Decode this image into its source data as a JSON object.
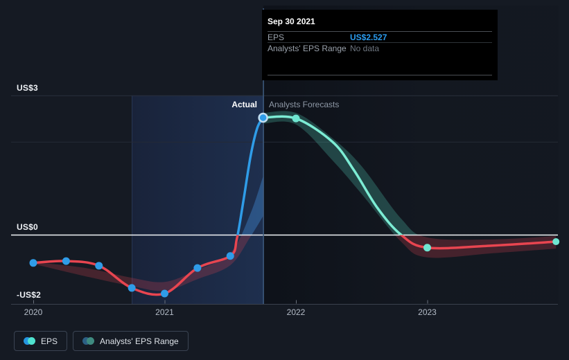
{
  "colors": {
    "page_bg": "#151a23",
    "eps_blue": "#2f9ce8",
    "eps_red": "#e84550",
    "forecast_teal": "#7cecd4",
    "dot_blue": "#2f9ce8",
    "dot_teal": "#6fe6d1",
    "peak_ring": "#c3def2",
    "zero_line": "#f2f5f8",
    "gridline": "#2a303c",
    "gridline_minor": "#242a36",
    "axis_line": "#3a414d",
    "tick": "#6a717d",
    "divider": "#3e5c80",
    "band_bg_left": "#19233a",
    "band_bg_right": "#1e2f4e",
    "past_band_below": "rgba(214,66,80,0.26)",
    "past_band_above": "rgba(64,140,215,0.40)",
    "forecast_band_above": "rgba(92,224,201,0.24)",
    "forecast_band_below": "rgba(214,66,80,0.26)"
  },
  "tooltip": {
    "title": "Sep 30 2021",
    "rows": [
      {
        "label": "EPS",
        "value": "US$2.527"
      },
      {
        "label": "Analysts' EPS Range",
        "value": "No data"
      }
    ]
  },
  "region_labels": {
    "actual": "Actual",
    "forecast": "Analysts Forecasts"
  },
  "legend": [
    {
      "label": "EPS",
      "dot1": "#2596e0",
      "dot2": "#4fe3cf"
    },
    {
      "label": "Analysts' EPS Range",
      "dot1": "#2c5f84",
      "dot2": "#3f8b80"
    }
  ],
  "chart_data": {
    "type": "line",
    "title": "EPS actual vs analysts forecasts",
    "unit": "US$ (EPS)",
    "x_axis": {
      "tick_years": [
        2020,
        2021,
        2022,
        2023
      ],
      "labels": [
        "2020",
        "2021",
        "2022",
        "2023"
      ],
      "range": [
        2019.83,
        2024.0
      ]
    },
    "y_axis": {
      "labels": [
        {
          "text": "US$3",
          "value": 3
        },
        {
          "text": "US$0",
          "value": 0
        },
        {
          "text": "-US$2",
          "value": -2
        }
      ],
      "gridline_values": [
        3,
        2
      ],
      "zero_value": 0
    },
    "highlight_region": {
      "from": 2020.75,
      "to": 2021.75
    },
    "divider_x": 2021.75,
    "hovered_point": {
      "x": 2021.75,
      "value": 2.527
    },
    "actual": {
      "name": "EPS",
      "points": [
        [
          2020.0,
          -0.61
        ],
        [
          2020.25,
          -0.57
        ],
        [
          2020.5,
          -0.67
        ],
        [
          2020.75,
          -1.15
        ],
        [
          2021.0,
          -1.27
        ],
        [
          2021.25,
          -0.72
        ],
        [
          2021.5,
          -0.46
        ],
        [
          2021.75,
          2.527
        ]
      ],
      "shape": [
        [
          2020.0,
          -0.61
        ],
        [
          2020.25,
          -0.57
        ],
        [
          2020.5,
          -0.67
        ],
        [
          2020.75,
          -1.15
        ],
        [
          2021.0,
          -1.27
        ],
        [
          2021.25,
          -0.72
        ],
        [
          2021.5,
          -0.46
        ],
        [
          2021.55,
          -0.09
        ],
        [
          2021.6,
          0.73
        ],
        [
          2021.655,
          1.7
        ],
        [
          2021.705,
          2.3
        ],
        [
          2021.75,
          2.527
        ]
      ]
    },
    "forecast": {
      "name": "EPS forecast",
      "points": [
        [
          2022.0,
          2.51
        ],
        [
          2023.0,
          -0.28
        ],
        [
          2023.98,
          -0.15
        ]
      ],
      "shape": [
        [
          2021.75,
          2.527
        ],
        [
          2022.0,
          2.51
        ],
        [
          2022.28,
          2.0
        ],
        [
          2022.44,
          1.4
        ],
        [
          2022.62,
          0.58
        ],
        [
          2022.8,
          0.0
        ],
        [
          2023.0,
          -0.28
        ],
        [
          2023.5,
          -0.235
        ],
        [
          2023.98,
          -0.15
        ]
      ]
    },
    "past_range_band": [
      [
        2020.0,
        -0.63,
        -0.59
      ],
      [
        2020.4,
        -0.9,
        -0.72
      ],
      [
        2020.75,
        -1.11,
        -0.93
      ],
      [
        2021.0,
        -1.21,
        -1.02
      ],
      [
        2021.25,
        -0.96,
        -0.76
      ],
      [
        2021.5,
        -0.66,
        -0.4
      ],
      [
        2021.65,
        -0.06,
        0.43
      ],
      [
        2021.75,
        0.4,
        1.26
      ]
    ],
    "forecast_range_band": [
      [
        2021.75,
        2.4,
        2.63
      ],
      [
        2022.0,
        2.38,
        2.63
      ],
      [
        2022.28,
        1.6,
        2.08
      ],
      [
        2022.5,
        0.88,
        1.48
      ],
      [
        2022.8,
        -0.15,
        0.35
      ],
      [
        2023.0,
        -0.49,
        -0.06
      ],
      [
        2023.5,
        -0.4,
        -0.1
      ],
      [
        2023.98,
        -0.3,
        -0.03
      ]
    ]
  }
}
